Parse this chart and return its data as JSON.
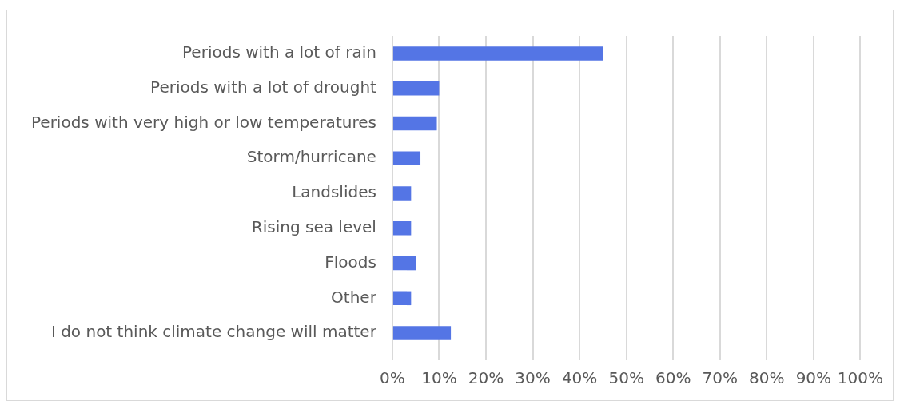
{
  "chart_data": {
    "type": "bar",
    "orientation": "horizontal",
    "categories": [
      "Periods with a lot of rain",
      "Periods with a lot of drought",
      "Periods with very high or low temperatures",
      "Storm/hurricane",
      "Landslides",
      "Rising sea level",
      "Floods",
      "Other",
      "I do not think climate change will matter"
    ],
    "values": [
      45,
      10,
      9.5,
      6,
      4,
      4,
      5,
      4,
      12.5
    ],
    "color": "#5475e5",
    "xlim": [
      0,
      100
    ],
    "xticks": [
      {
        "value": 0,
        "label": "0%"
      },
      {
        "value": 10,
        "label": "10%"
      },
      {
        "value": 20,
        "label": "20%"
      },
      {
        "value": 30,
        "label": "30%"
      },
      {
        "value": 40,
        "label": "40%"
      },
      {
        "value": 50,
        "label": "50%"
      },
      {
        "value": 60,
        "label": "60%"
      },
      {
        "value": 70,
        "label": "70%"
      },
      {
        "value": 80,
        "label": "80%"
      },
      {
        "value": 90,
        "label": "90%"
      },
      {
        "value": 100,
        "label": "100%"
      }
    ],
    "grid": "x",
    "legend": false
  }
}
